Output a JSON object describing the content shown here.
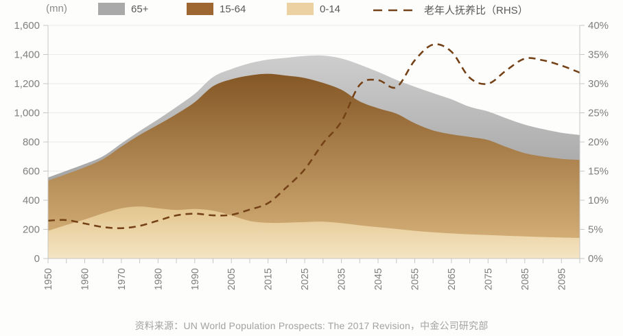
{
  "legend": {
    "unit": "(mn)",
    "items": [
      {
        "label": "65+",
        "color": "#a9a9a9",
        "type": "swatch"
      },
      {
        "label": "15-64",
        "color": "#9e6630",
        "type": "swatch"
      },
      {
        "label": "0-14",
        "color": "#ecd1a2",
        "type": "swatch"
      },
      {
        "label": "老年人抚养比（RHS）",
        "color": "#754217",
        "type": "dashed-line"
      }
    ]
  },
  "footer": {
    "source": "资料来源：UN World Population Prospects: The 2017 Revision，中金公司研究部"
  },
  "chart_data": {
    "type": "area",
    "stacked": true,
    "title": "",
    "unit_left": "mn",
    "unit_right": "%",
    "grid": "horizontal",
    "legend_position": "top",
    "years": [
      1950,
      1955,
      1960,
      1965,
      1970,
      1975,
      1980,
      1985,
      1990,
      2000,
      2005,
      2010,
      2015,
      2020,
      2025,
      2030,
      2035,
      2040,
      2045,
      2050,
      2055,
      2060,
      2065,
      2070,
      2075,
      2080,
      2085,
      2090,
      2095,
      2100
    ],
    "x_tick_labels": [
      "1950",
      "1960",
      "1970",
      "1980",
      "1990",
      "2005",
      "2015",
      "2025",
      "2035",
      "2045",
      "2055",
      "2065",
      "2075",
      "2085",
      "2095"
    ],
    "series": [
      {
        "name": "0-14",
        "values": [
          190,
          230,
          268,
          310,
          345,
          357,
          345,
          333,
          340,
          328,
          295,
          258,
          245,
          246,
          250,
          253,
          243,
          228,
          215,
          203,
          190,
          180,
          172,
          166,
          161,
          156,
          152,
          148,
          144,
          141
        ]
      },
      {
        "name": "15-64",
        "values": [
          344,
          349,
          358,
          372,
          423,
          491,
          573,
          658,
          733,
          854,
          935,
          998,
          1023,
          1009,
          989,
          952,
          915,
          850,
          816,
          791,
          738,
          699,
          680,
          668,
          652,
          609,
          571,
          552,
          540,
          536
        ]
      },
      {
        "name": "65+",
        "values": [
          22,
          23,
          22,
          20,
          22,
          27,
          37,
          49,
          57,
          63,
          70,
          84,
          97,
          123,
          151,
          188,
          215,
          253,
          250,
          232,
          251,
          256,
          241,
          207,
          196,
          197,
          196,
          188,
          179,
          171
        ]
      }
    ],
    "line_series": {
      "name": "老年人抚养比（RHS）",
      "axis": "right",
      "unit": "%",
      "values": [
        6.5,
        6.6,
        6.0,
        5.4,
        5.2,
        5.6,
        6.5,
        7.4,
        7.7,
        7.4,
        7.5,
        8.4,
        9.5,
        12.2,
        15.3,
        19.8,
        23.5,
        29.8,
        30.6,
        29.4,
        34.0,
        36.7,
        35.5,
        31.0,
        30.0,
        32.3,
        34.3,
        34.0,
        33.1,
        31.9
      ]
    },
    "left_axis": {
      "min": 0,
      "max": 1600,
      "step": 200,
      "tick_labels": [
        "0",
        "200",
        "400",
        "600",
        "800",
        "1,000",
        "1,200",
        "1,400",
        "1,600"
      ]
    },
    "right_axis": {
      "min": 0,
      "max": 40,
      "step": 5,
      "tick_labels": [
        "0%",
        "5%",
        "10%",
        "15%",
        "20%",
        "25%",
        "30%",
        "35%",
        "40%"
      ]
    },
    "colors": {
      "area_65_top": "#d0d0d0",
      "area_65_bottom": "#a0a0a0",
      "area_1564_top": "#7f5120",
      "area_1564_bottom": "#dcb87f",
      "area_014_top": "#e0c085",
      "area_014_bottom": "#f6e6c6",
      "dependency_line": "#754217",
      "grid": "#ebebeb",
      "axis": "#c6c6c6",
      "tick_text": "#7f7f7f"
    }
  }
}
